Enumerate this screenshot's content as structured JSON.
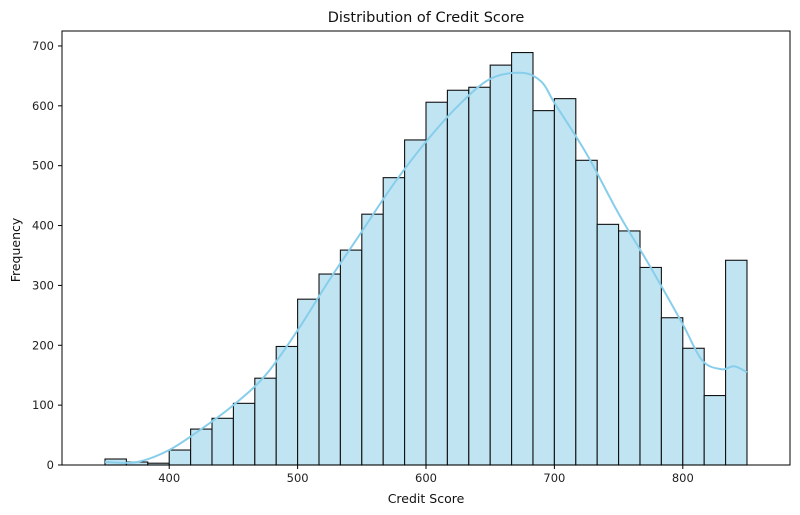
{
  "chart_data": {
    "type": "bar",
    "title": "Distribution of Credit Score",
    "xlabel": "Credit Score",
    "ylabel": "Frequency",
    "xlim": [
      316.5,
      883.5
    ],
    "ylim": [
      0,
      725
    ],
    "bin_edges": [
      350,
      366.67,
      383.33,
      400,
      416.67,
      433.33,
      450,
      466.67,
      483.33,
      500,
      516.67,
      533.33,
      550,
      566.67,
      583.33,
      600,
      616.67,
      633.33,
      650,
      666.67,
      683.33,
      700,
      716.67,
      733.33,
      750,
      766.67,
      783.33,
      800,
      816.67,
      833.33,
      850
    ],
    "values": [
      10,
      5,
      3,
      25,
      60,
      78,
      103,
      145,
      198,
      277,
      319,
      359,
      419,
      480,
      543,
      606,
      626,
      631,
      668,
      689,
      592,
      612,
      509,
      402,
      391,
      330,
      246,
      195,
      116,
      342
    ],
    "x_ticks": [
      400,
      500,
      600,
      700,
      800
    ],
    "y_ticks": [
      0,
      100,
      200,
      300,
      400,
      500,
      600,
      700
    ],
    "kde": {
      "x": [
        350,
        375,
        400,
        425,
        450,
        475,
        500,
        525,
        550,
        575,
        600,
        625,
        650,
        675,
        690,
        700,
        725,
        750,
        775,
        800,
        815,
        830,
        840,
        850
      ],
      "y": [
        5,
        5,
        25,
        60,
        100,
        150,
        225,
        310,
        390,
        470,
        540,
        600,
        645,
        655,
        640,
        605,
        520,
        420,
        330,
        235,
        175,
        160,
        165,
        155
      ]
    },
    "colors": {
      "bar_fill": "#c1e4f3",
      "bar_edge": "#111111",
      "kde_line": "#87ceeb"
    }
  }
}
